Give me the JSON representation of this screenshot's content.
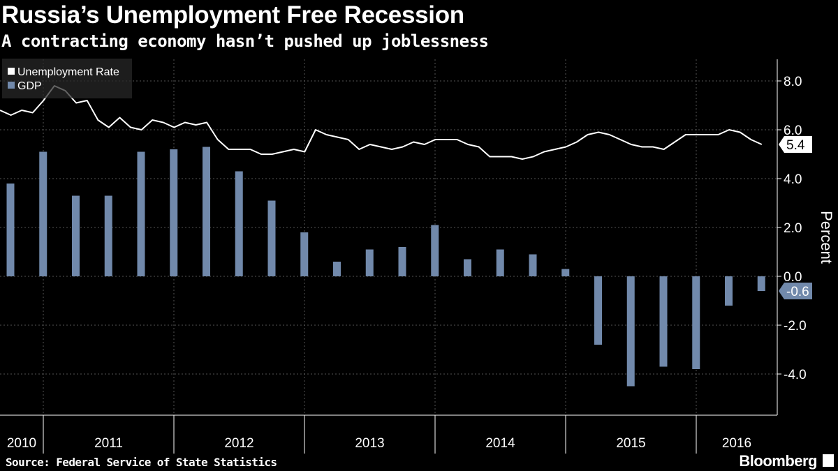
{
  "header": {
    "title": "Russia’s Unemployment Free Recession",
    "subtitle": "A contracting economy hasn’t pushed up joblessness"
  },
  "footer": {
    "source": "Source: Federal Service of State Statistics",
    "brand": "Bloomberg"
  },
  "colors": {
    "background": "#000000",
    "unemployment": "#ffffff",
    "gdp": "#7189ab"
  },
  "chart_data": {
    "type": "bar+line",
    "title": "Russia’s Unemployment Free Recession",
    "ylabel": "Percent",
    "ylim": [
      -5.7,
      8.9
    ],
    "yticks": [
      8.0,
      6.0,
      4.0,
      2.0,
      0.0,
      -2.0,
      -4.0
    ],
    "ytick_labels": [
      "8.0",
      "6.0",
      "4.0",
      "2.0",
      "0.0",
      "-2.0",
      "-4.0"
    ],
    "years": [
      "2010",
      "2011",
      "2012",
      "2013",
      "2014",
      "2015",
      "2016"
    ],
    "grid": true,
    "legend": {
      "placement": "top-left",
      "entries": [
        "Unemployment Rate",
        "GDP"
      ]
    },
    "series": [
      {
        "name": "Unemployment Rate",
        "type": "line",
        "frequency": "monthly",
        "values": [
          6.8,
          6.6,
          6.8,
          6.7,
          7.2,
          7.8,
          7.6,
          7.1,
          7.2,
          6.4,
          6.1,
          6.5,
          6.1,
          6.0,
          6.4,
          6.3,
          6.1,
          6.3,
          6.2,
          6.3,
          5.6,
          5.2,
          5.2,
          5.2,
          5.0,
          5.0,
          5.1,
          5.2,
          5.1,
          6.0,
          5.8,
          5.7,
          5.6,
          5.2,
          5.4,
          5.3,
          5.2,
          5.3,
          5.5,
          5.4,
          5.6,
          5.6,
          5.6,
          5.4,
          5.3,
          4.9,
          4.9,
          4.9,
          4.8,
          4.9,
          5.1,
          5.2,
          5.3,
          5.5,
          5.8,
          5.9,
          5.8,
          5.6,
          5.4,
          5.3,
          5.3,
          5.2,
          5.5,
          5.8,
          5.8,
          5.8,
          5.8,
          6.0,
          5.9,
          5.6,
          5.4
        ],
        "last_label": "5.4"
      },
      {
        "name": "GDP",
        "type": "bar",
        "frequency": "quarterly",
        "values": [
          3.8,
          5.1,
          3.3,
          3.3,
          5.1,
          5.2,
          5.3,
          4.3,
          3.1,
          1.8,
          0.6,
          1.1,
          1.2,
          2.1,
          0.7,
          1.1,
          0.9,
          0.3,
          -2.8,
          -4.5,
          -3.7,
          -3.8,
          -1.2,
          -0.6
        ],
        "last_label": "-0.6"
      }
    ]
  }
}
